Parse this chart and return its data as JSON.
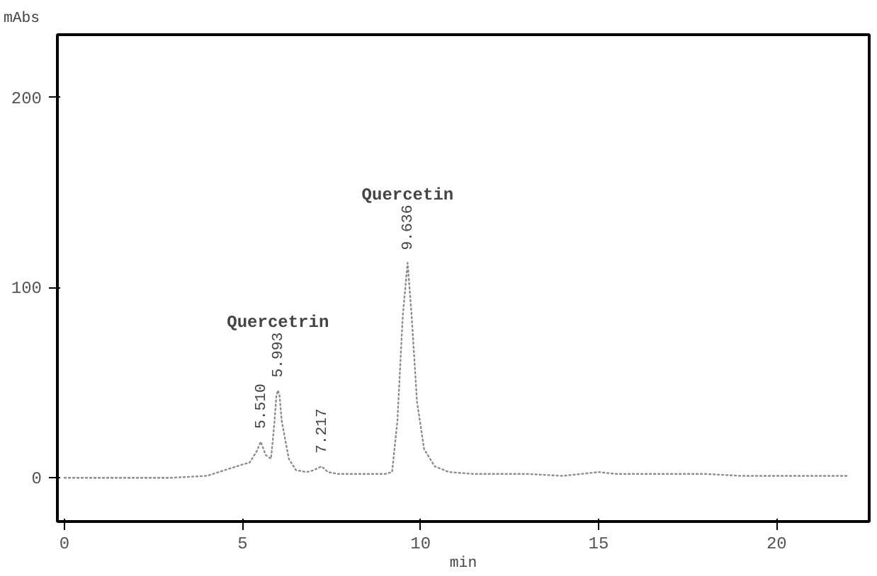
{
  "chart_data": {
    "type": "line",
    "xlabel": "min",
    "ylabel": "mAbs",
    "x": [
      0,
      1,
      2,
      3,
      4,
      4.5,
      5,
      5.2,
      5.4,
      5.51,
      5.65,
      5.8,
      5.9,
      5.95,
      5.993,
      6.04,
      6.1,
      6.3,
      6.5,
      6.8,
      7.0,
      7.217,
      7.4,
      7.7,
      8,
      8.5,
      9.0,
      9.2,
      9.35,
      9.5,
      9.636,
      9.75,
      9.9,
      10.1,
      10.4,
      10.8,
      11.5,
      12,
      13,
      14,
      14.5,
      15,
      15.5,
      16,
      17,
      18,
      19,
      20,
      21,
      22
    ],
    "series": [
      {
        "color": "#8c8c8c",
        "values": [
          0,
          0,
          0,
          0,
          1,
          4,
          7,
          8,
          14,
          19,
          12,
          10,
          30,
          43,
          46,
          43,
          30,
          10,
          4,
          3,
          4,
          6,
          3,
          2,
          2,
          2,
          2,
          3,
          30,
          85,
          113,
          85,
          40,
          15,
          6,
          3,
          2,
          2,
          2,
          1,
          2,
          3,
          2,
          2,
          2,
          2,
          1,
          1,
          1,
          1
        ]
      }
    ],
    "line_style": "dotted",
    "grid": false,
    "xlim": [
      -0.2,
      22.6
    ],
    "ylim": [
      -23,
      233
    ],
    "xticks": [
      0,
      5,
      10,
      15,
      20
    ],
    "yticks": [
      0,
      100,
      200
    ],
    "annotations": [
      "Quercetrin",
      "Quercetin",
      {
        "text": "5.510",
        "x": 5.51,
        "y": 19
      },
      {
        "text": "5.993",
        "x": 5.993,
        "y": 46
      },
      {
        "text": "7.217",
        "x": 7.217,
        "y": 6
      },
      {
        "text": "9.636",
        "x": 9.636,
        "y": 113
      }
    ]
  }
}
